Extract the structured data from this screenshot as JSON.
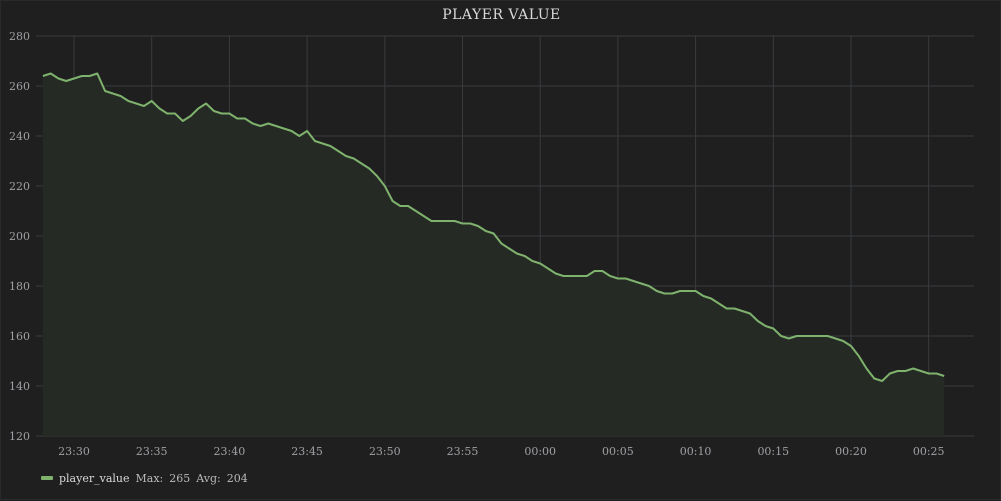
{
  "panel": {
    "title": "PLAYER VALUE"
  },
  "legend": {
    "series_name": "player_value",
    "max_label": "Max:",
    "max_value": "265",
    "avg_label": "Avg:",
    "avg_value": "204"
  },
  "colors": {
    "line": "#7eb26d",
    "fill": "#262a25",
    "grid": "#3a3b3d",
    "background": "#1f1f20"
  },
  "chart_data": {
    "type": "area",
    "title": "PLAYER VALUE",
    "xlabel": "",
    "ylabel": "",
    "ylim": [
      120,
      280
    ],
    "yticks": [
      120,
      140,
      160,
      180,
      200,
      220,
      240,
      260,
      280
    ],
    "xlim": [
      "23:27:48",
      "00:27:12"
    ],
    "xticks": [
      "23:30",
      "23:35",
      "23:40",
      "23:45",
      "23:50",
      "23:55",
      "00:00",
      "00:05",
      "00:10",
      "00:15",
      "00:20",
      "00:25"
    ],
    "grid": true,
    "legend_position": "bottom-left",
    "series": [
      {
        "name": "player_value",
        "x": [
          "23:28",
          "23:28:30",
          "23:29",
          "23:29:30",
          "23:30",
          "23:30:30",
          "23:31",
          "23:31:30",
          "23:32",
          "23:32:30",
          "23:33",
          "23:33:30",
          "23:34",
          "23:34:30",
          "23:35",
          "23:35:30",
          "23:36",
          "23:36:30",
          "23:37",
          "23:37:30",
          "23:38",
          "23:38:30",
          "23:39",
          "23:39:30",
          "23:40",
          "23:40:30",
          "23:41",
          "23:41:30",
          "23:42",
          "23:42:30",
          "23:43",
          "23:43:30",
          "23:44",
          "23:44:30",
          "23:45",
          "23:45:30",
          "23:46",
          "23:46:30",
          "23:47",
          "23:47:30",
          "23:48",
          "23:48:30",
          "23:49",
          "23:49:30",
          "23:50",
          "23:50:30",
          "23:51",
          "23:51:30",
          "23:52",
          "23:52:30",
          "23:53",
          "23:53:30",
          "23:54",
          "23:54:30",
          "23:55",
          "23:55:30",
          "23:56",
          "23:56:30",
          "23:57",
          "23:57:30",
          "23:58",
          "23:58:30",
          "23:59",
          "23:59:30",
          "00:00",
          "00:00:30",
          "00:01",
          "00:01:30",
          "00:02",
          "00:02:30",
          "00:03",
          "00:03:30",
          "00:04",
          "00:04:30",
          "00:05",
          "00:05:30",
          "00:06",
          "00:06:30",
          "00:07",
          "00:07:30",
          "00:08",
          "00:08:30",
          "00:09",
          "00:09:30",
          "00:10",
          "00:10:30",
          "00:11",
          "00:11:30",
          "00:12",
          "00:12:30",
          "00:13",
          "00:13:30",
          "00:14",
          "00:14:30",
          "00:15",
          "00:15:30",
          "00:16",
          "00:16:30",
          "00:17",
          "00:17:30",
          "00:18",
          "00:18:30",
          "00:19",
          "00:19:30",
          "00:20",
          "00:20:30",
          "00:21",
          "00:21:30",
          "00:22",
          "00:22:30",
          "00:23",
          "00:23:30",
          "00:24",
          "00:24:30",
          "00:25",
          "00:25:30",
          "00:26"
        ],
        "values": [
          264,
          265,
          263,
          262,
          263,
          264,
          264,
          265,
          258,
          257,
          256,
          254,
          253,
          252,
          254,
          251,
          249,
          249,
          246,
          248,
          251,
          253,
          250,
          249,
          249,
          247,
          247,
          245,
          244,
          245,
          244,
          243,
          242,
          240,
          242,
          238,
          237,
          236,
          234,
          232,
          231,
          229,
          227,
          224,
          220,
          214,
          212,
          212,
          210,
          208,
          206,
          206,
          206,
          206,
          205,
          205,
          204,
          202,
          201,
          197,
          195,
          193,
          192,
          190,
          189,
          187,
          185,
          184,
          184,
          184,
          184,
          186,
          186,
          184,
          183,
          183,
          182,
          181,
          180,
          178,
          177,
          177,
          178,
          178,
          178,
          176,
          175,
          173,
          171,
          171,
          170,
          169,
          166,
          164,
          163,
          160,
          159,
          160,
          160,
          160,
          160,
          160,
          159,
          158,
          156,
          152,
          147,
          143,
          142,
          145,
          146,
          146,
          147,
          146,
          145,
          145,
          144
        ],
        "max": 265,
        "avg": 204
      }
    ]
  }
}
